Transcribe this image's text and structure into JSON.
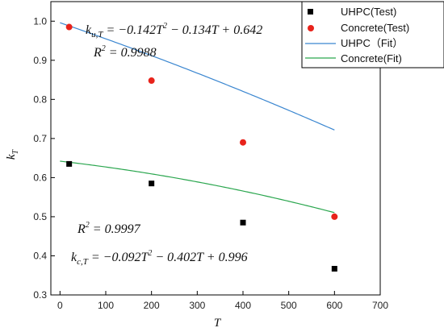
{
  "chart_data": {
    "type": "scatter",
    "xlabel": "T",
    "ylabel": "k_T",
    "xlim": [
      -20,
      700
    ],
    "ylim": [
      0.3,
      1.05
    ],
    "xticks": [
      0,
      100,
      200,
      300,
      400,
      500,
      600,
      700
    ],
    "yticks": [
      0.3,
      0.4,
      0.5,
      0.6,
      0.7,
      0.8,
      0.9,
      1.0
    ],
    "grid": false,
    "legend_position": "top-right",
    "series": [
      {
        "name": "UHPC(Test)",
        "kind": "points",
        "marker": "square",
        "color": "#000000",
        "x": [
          20,
          200,
          400,
          600
        ],
        "y": [
          0.635,
          0.585,
          0.485,
          0.367
        ]
      },
      {
        "name": "Concrete(Test)",
        "kind": "points",
        "marker": "circle",
        "color": "#e8231b",
        "x": [
          20,
          200,
          400,
          600
        ],
        "y": [
          0.985,
          0.848,
          0.69,
          0.5
        ]
      },
      {
        "name": "UHPC（Fit）",
        "kind": "fit",
        "color": "#3a86d0",
        "coefficients": {
          "a": -0.092,
          "b": -0.402,
          "c": 0.996
        },
        "x_range": [
          0,
          600
        ]
      },
      {
        "name": "Concrete(Fit)",
        "kind": "fit",
        "color": "#2aa64e",
        "coefficients": {
          "a": -0.142,
          "b": -0.134,
          "c": 0.642
        },
        "x_range": [
          0,
          600
        ]
      }
    ],
    "annotations": {
      "concrete_eq_lhs": "k",
      "concrete_eq_sub": "u,T",
      "concrete_eq_rhs_1": " = −0.142T",
      "concrete_eq_rhs_2": " − 0.134T + 0.642",
      "concrete_r2": " = 0.9988",
      "uhpc_r2": " = 0.9997",
      "uhpc_eq_lhs": "k",
      "uhpc_eq_sub": "c,T",
      "uhpc_eq_rhs_1": " = −0.092T",
      "uhpc_eq_rhs_2": " − 0.402T + 0.996",
      "r_letter": "R",
      "sq": "2"
    }
  }
}
